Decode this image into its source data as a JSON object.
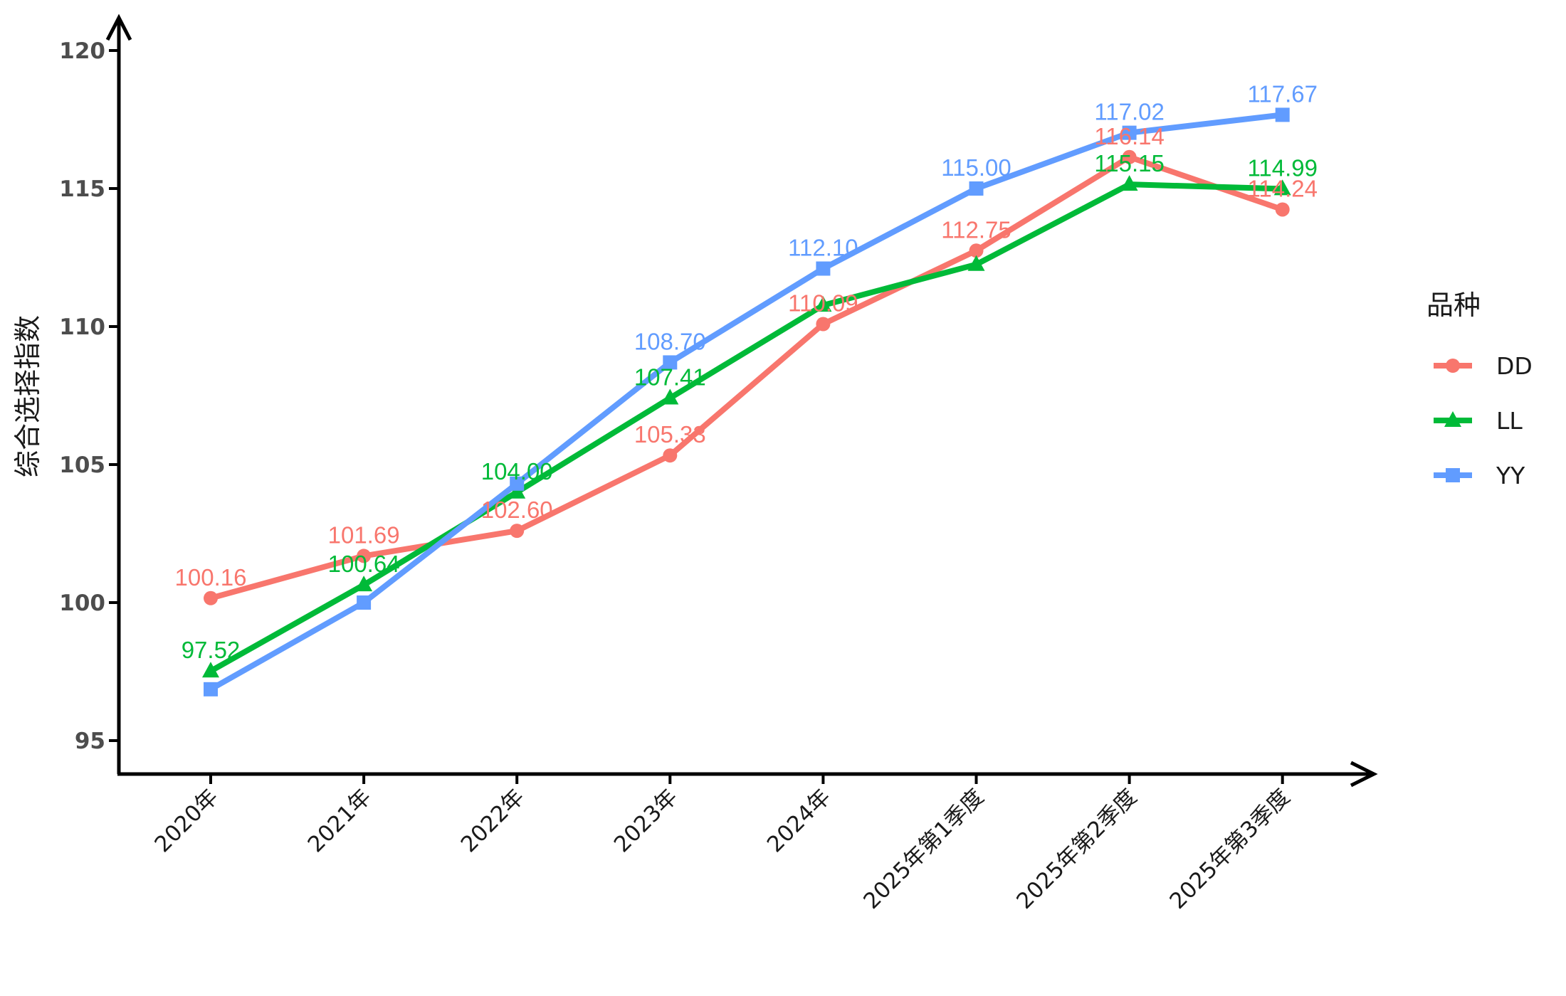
{
  "chart_data": {
    "type": "line",
    "title": "",
    "xlabel": "",
    "ylabel": "综合选择指数",
    "ylim": [
      93.8,
      120.4
    ],
    "yticks": [
      95,
      100,
      105,
      110,
      115,
      120
    ],
    "grid": false,
    "legend_position": "right",
    "legend_title": "品种",
    "categories": [
      "2020年",
      "2021年",
      "2022年",
      "2023年",
      "2024年",
      "2025年第1季度",
      "2025年第2季度",
      "2025年第3季度"
    ],
    "series": [
      {
        "name": "DD",
        "color": "#F8766D",
        "marker": "circle",
        "values": [
          100.16,
          101.69,
          102.6,
          105.33,
          110.09,
          112.75,
          116.14,
          114.24
        ],
        "labels": [
          "100.16",
          "101.69",
          "102.60",
          "105.33",
          "110.09",
          "112.75",
          "116.14",
          "114.24"
        ]
      },
      {
        "name": "LL",
        "color": "#00BA38",
        "marker": "triangle",
        "values": [
          97.52,
          100.64,
          104.0,
          107.41,
          110.77,
          112.25,
          115.15,
          114.99
        ],
        "labels": [
          "97.52",
          "100.64",
          "104.00",
          "107.41",
          "",
          "",
          "115.15",
          "114.99"
        ]
      },
      {
        "name": "YY",
        "color": "#619CFF",
        "marker": "square",
        "values": [
          96.86,
          100.0,
          104.31,
          108.7,
          112.1,
          115.0,
          117.02,
          117.67
        ],
        "labels": [
          "",
          "",
          "",
          "108.70",
          "112.10",
          "115.00",
          "117.02",
          "117.67"
        ]
      }
    ]
  }
}
